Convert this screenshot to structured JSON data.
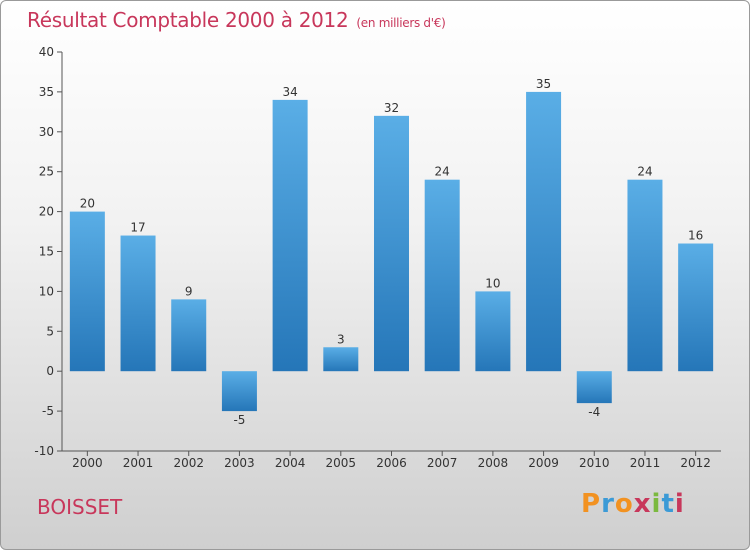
{
  "title": "Résultat Comptable 2000 à 2012",
  "unit": "(en milliers d'€)",
  "commune": "BOISSET",
  "logo": {
    "text": "Proxiti",
    "letters": [
      "P",
      "r",
      "o",
      "x",
      "i",
      "t",
      "i"
    ],
    "colors": [
      "#f29221",
      "#3b9ad6",
      "#f29221",
      "#c8375b",
      "#7bb93f",
      "#3b9ad6",
      "#c8375b"
    ]
  },
  "colors": {
    "bar_top": "#5aaee6",
    "bar_bottom": "#2576b8",
    "accent": "#c8375b"
  },
  "chart_data": {
    "type": "bar",
    "title": "Résultat Comptable 2000 à 2012",
    "xlabel": "",
    "ylabel": "",
    "categories": [
      "2000",
      "2001",
      "2002",
      "2003",
      "2004",
      "2005",
      "2006",
      "2007",
      "2008",
      "2009",
      "2010",
      "2011",
      "2012"
    ],
    "values": [
      20,
      17,
      9,
      -5,
      34,
      3,
      32,
      24,
      10,
      35,
      -4,
      24,
      16
    ],
    "ylim": [
      -10,
      40
    ],
    "yticks": [
      -10,
      -5,
      0,
      5,
      10,
      15,
      20,
      25,
      30,
      35,
      40
    ],
    "grid": false
  }
}
